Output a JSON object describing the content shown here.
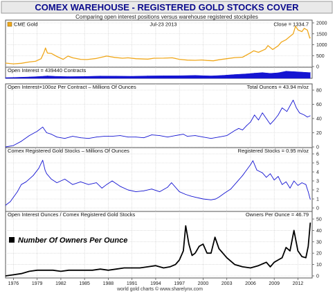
{
  "header": {
    "title": "COMEX WAREHOUSE - REGISTERED GOLD STOCKS COVER",
    "subtitle": "Comparing open interest positions versus warehouse registered stockpiles"
  },
  "footer": {
    "credit": "world gold charts © www.sharelynx.com"
  },
  "colors": {
    "gold": "#f0a81c",
    "blue": "#1414d2",
    "black": "#000000",
    "title_bg": "#e9e9e9",
    "grid": "#c8c8c8"
  },
  "chart_data": [
    {
      "type": "line",
      "id": "cme-gold",
      "title": "CME Gold",
      "legend": "CME Gold",
      "date": "Jul-23  2013",
      "right_label": "Close = 1334.7",
      "x_range": [
        1975.0,
        2013.8
      ],
      "ylim": [
        0,
        2000
      ],
      "yticks": [
        0,
        500,
        1000,
        1500,
        2000
      ],
      "series": [
        {
          "name": "CME Gold",
          "x": [
            1975.0,
            1976.0,
            1977.0,
            1978.0,
            1978.8,
            1979.5,
            1979.9,
            1980.05,
            1980.3,
            1980.8,
            1981.5,
            1982.3,
            1982.9,
            1983.5,
            1984.5,
            1985.3,
            1986.5,
            1987.8,
            1988.8,
            1989.8,
            1990.5,
            1991.5,
            1993.0,
            1993.8,
            1995.0,
            1996.1,
            1997.0,
            1998.0,
            1999.0,
            1999.8,
            2000.5,
            2001.3,
            2002.0,
            2003.0,
            2004.0,
            2005.0,
            2006.0,
            2006.4,
            2007.0,
            2007.9,
            2008.2,
            2008.8,
            2009.5,
            2009.9,
            2010.5,
            2011.0,
            2011.4,
            2011.7,
            2012.0,
            2012.5,
            2012.8,
            2013.2,
            2013.5,
            2013.56
          ],
          "values": [
            160,
            125,
            150,
            210,
            240,
            360,
            680,
            850,
            620,
            600,
            460,
            330,
            480,
            400,
            330,
            320,
            370,
            480,
            420,
            380,
            400,
            360,
            340,
            380,
            385,
            400,
            330,
            295,
            285,
            300,
            280,
            265,
            310,
            360,
            410,
            430,
            630,
            720,
            650,
            800,
            960,
            780,
            950,
            1120,
            1230,
            1380,
            1500,
            1850,
            1680,
            1600,
            1750,
            1670,
            1300,
            1334.7
          ]
        }
      ]
    },
    {
      "type": "area",
      "id": "open-interest",
      "title": "Open Interest = 439440 Contracts",
      "x_range": [
        1975.0,
        2013.8
      ],
      "series": [
        {
          "name": "Open Interest",
          "x": [
            1975.0,
            1976.0,
            1978.0,
            1979.5,
            1980.3,
            1981.5,
            1983.0,
            1985.0,
            1987.0,
            1989.0,
            1991.0,
            1993.0,
            1995.0,
            1997.0,
            1999.0,
            2001.0,
            2002.5,
            2004.0,
            2005.5,
            2006.5,
            2007.5,
            2008.5,
            2009.5,
            2010.5,
            2011.5,
            2012.5,
            2013.56
          ],
          "values": [
            0,
            20,
            60,
            110,
            150,
            110,
            90,
            100,
            140,
            130,
            120,
            150,
            160,
            170,
            190,
            150,
            200,
            270,
            330,
            390,
            440,
            370,
            420,
            560,
            520,
            480,
            439.44
          ]
        }
      ]
    },
    {
      "type": "line",
      "id": "oi-ounces",
      "title": "Open Interest×100oz Per Contract – Millions Of Ounces",
      "right_label": "Total Ounces = 43.94 m/oz",
      "x_range": [
        1975.0,
        2013.8
      ],
      "ylim": [
        0,
        80
      ],
      "yticks": [
        0,
        20,
        40,
        60,
        80
      ],
      "series": [
        {
          "name": "Open Interest Ounces",
          "x": [
            1975.0,
            1976.0,
            1977.0,
            1978.0,
            1979.0,
            1979.7,
            1980.2,
            1980.8,
            1981.5,
            1982.5,
            1983.5,
            1984.5,
            1985.5,
            1986.5,
            1987.5,
            1988.5,
            1989.5,
            1990.5,
            1991.5,
            1992.5,
            1993.5,
            1994.5,
            1995.5,
            1996.5,
            1997.5,
            1998.0,
            1999.0,
            2000.0,
            2001.0,
            2002.0,
            2003.0,
            2004.0,
            2004.5,
            2005.0,
            2005.5,
            2006.0,
            2006.5,
            2007.0,
            2007.5,
            2008.0,
            2008.5,
            2009.0,
            2009.5,
            2010.0,
            2010.6,
            2011.0,
            2011.4,
            2011.8,
            2012.2,
            2012.8,
            2013.2,
            2013.56
          ],
          "values": [
            0,
            2,
            8,
            16,
            22,
            28,
            20,
            18,
            14,
            12,
            15,
            13,
            12,
            14,
            15,
            15,
            16,
            14,
            14,
            13,
            17,
            16,
            14,
            16,
            18,
            15,
            16,
            14,
            12,
            14,
            16,
            23,
            26,
            24,
            30,
            35,
            45,
            38,
            48,
            40,
            32,
            38,
            45,
            55,
            50,
            58,
            66,
            55,
            48,
            45,
            42,
            43.94
          ]
        }
      ]
    },
    {
      "type": "line",
      "id": "registered-stocks",
      "title": "Comex Registered Gold Stocks – Millions Of Ounces",
      "right_label": "Registered Stocks = 0.95 m/oz",
      "x_range": [
        1975.0,
        2013.8
      ],
      "ylim": [
        0,
        6
      ],
      "yticks": [
        0,
        1,
        2,
        3,
        4,
        5,
        6
      ],
      "series": [
        {
          "name": "Registered Stocks",
          "x": [
            1975.0,
            1975.6,
            1976.5,
            1977.0,
            1977.6,
            1978.5,
            1979.2,
            1979.7,
            1980.0,
            1980.2,
            1980.8,
            1981.5,
            1982.5,
            1983.5,
            1984.5,
            1985.5,
            1986.5,
            1987.2,
            1987.8,
            1988.5,
            1989.5,
            1990.5,
            1991.5,
            1992.5,
            1993.5,
            1994.5,
            1995.5,
            1996.0,
            1997.0,
            1997.8,
            1998.5,
            1999.0,
            2000.0,
            2001.0,
            2001.6,
            2002.0,
            2002.8,
            2003.5,
            2004.3,
            2005.0,
            2005.5,
            2006.0,
            2006.3,
            2006.8,
            2007.5,
            2008.0,
            2008.5,
            2009.0,
            2009.5,
            2010.0,
            2010.5,
            2011.0,
            2011.5,
            2012.0,
            2012.5,
            2013.0,
            2013.3,
            2013.56
          ],
          "values": [
            0.3,
            0.7,
            1.8,
            2.6,
            2.9,
            3.6,
            4.4,
            5.3,
            4.2,
            3.8,
            3.2,
            2.8,
            3.2,
            2.6,
            2.9,
            2.6,
            2.8,
            2.2,
            2.6,
            3.0,
            2.4,
            2.0,
            1.8,
            1.9,
            2.1,
            1.8,
            2.3,
            2.8,
            1.8,
            1.5,
            1.3,
            1.2,
            1.0,
            0.9,
            1.0,
            1.2,
            1.7,
            2.1,
            2.9,
            3.6,
            4.2,
            4.8,
            5.25,
            4.2,
            3.9,
            3.4,
            3.8,
            3.1,
            3.5,
            2.6,
            2.9,
            2.2,
            3.0,
            2.5,
            2.8,
            2.6,
            1.8,
            0.95
          ]
        }
      ]
    },
    {
      "type": "line",
      "id": "owners-per-ounce",
      "title": "Open Interest Ounces / Comex Registered Gold Stocks",
      "right_label": "Owners Per Ounce = 46.79",
      "annotation": "Number Of Owners Per Ounce",
      "x_range": [
        1975.0,
        2013.8
      ],
      "ylim": [
        0,
        50
      ],
      "yticks": [
        0,
        10,
        20,
        30,
        40,
        50
      ],
      "xticks": [
        "1976",
        "1979",
        "1982",
        "1985",
        "1988",
        "1991",
        "1994",
        "1997",
        "2000",
        "2003",
        "2006",
        "2009",
        "2012"
      ],
      "series": [
        {
          "name": "Owners Per Ounce",
          "x": [
            1975.0,
            1976.0,
            1977.0,
            1978.0,
            1979.0,
            1980.0,
            1981.0,
            1982.0,
            1983.0,
            1984.0,
            1985.0,
            1986.0,
            1987.0,
            1988.0,
            1989.0,
            1990.0,
            1991.0,
            1992.0,
            1993.0,
            1994.0,
            1995.0,
            1995.8,
            1996.5,
            1997.0,
            1997.5,
            1997.8,
            1998.2,
            1998.6,
            1999.0,
            1999.5,
            2000.0,
            2000.5,
            2001.0,
            2001.5,
            2002.0,
            2003.0,
            2004.0,
            2005.0,
            2006.0,
            2007.0,
            2008.0,
            2008.5,
            2009.0,
            2009.5,
            2010.0,
            2010.5,
            2011.0,
            2011.5,
            2012.0,
            2012.5,
            2013.0,
            2013.3,
            2013.56
          ],
          "values": [
            0,
            1,
            2,
            4,
            5,
            5,
            5,
            4,
            5,
            5,
            5,
            5,
            6,
            5,
            6,
            7,
            7,
            7,
            8,
            9,
            7,
            8,
            10,
            14,
            22,
            44,
            28,
            18,
            20,
            26,
            28,
            20,
            20,
            34,
            24,
            16,
            10,
            8,
            7,
            9,
            12,
            8,
            12,
            14,
            16,
            25,
            22,
            40,
            22,
            17,
            16,
            26,
            46.79
          ]
        }
      ]
    }
  ]
}
